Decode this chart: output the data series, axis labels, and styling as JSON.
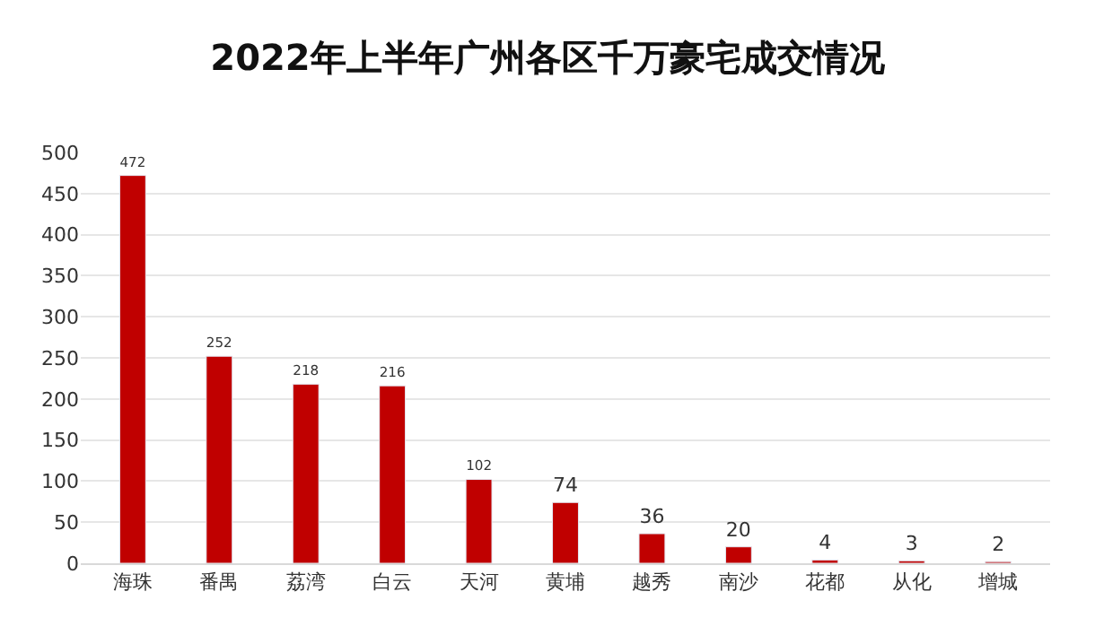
{
  "chart_data": {
    "type": "bar",
    "title": "2022年上半年广州各区千万豪宅成交情况",
    "categories": [
      "海珠",
      "番禺",
      "荔湾",
      "白云",
      "天河",
      "黄埔",
      "越秀",
      "南沙",
      "花都",
      "从化",
      "增城"
    ],
    "values": [
      472,
      252,
      218,
      216,
      102,
      74,
      36,
      20,
      4,
      3,
      2
    ],
    "color": "#c00000",
    "ylim": [
      0,
      500
    ],
    "yticks": [
      0,
      50,
      100,
      150,
      200,
      250,
      300,
      350,
      400,
      450,
      500
    ],
    "grid": "y",
    "data_labels": true,
    "legend": false
  }
}
